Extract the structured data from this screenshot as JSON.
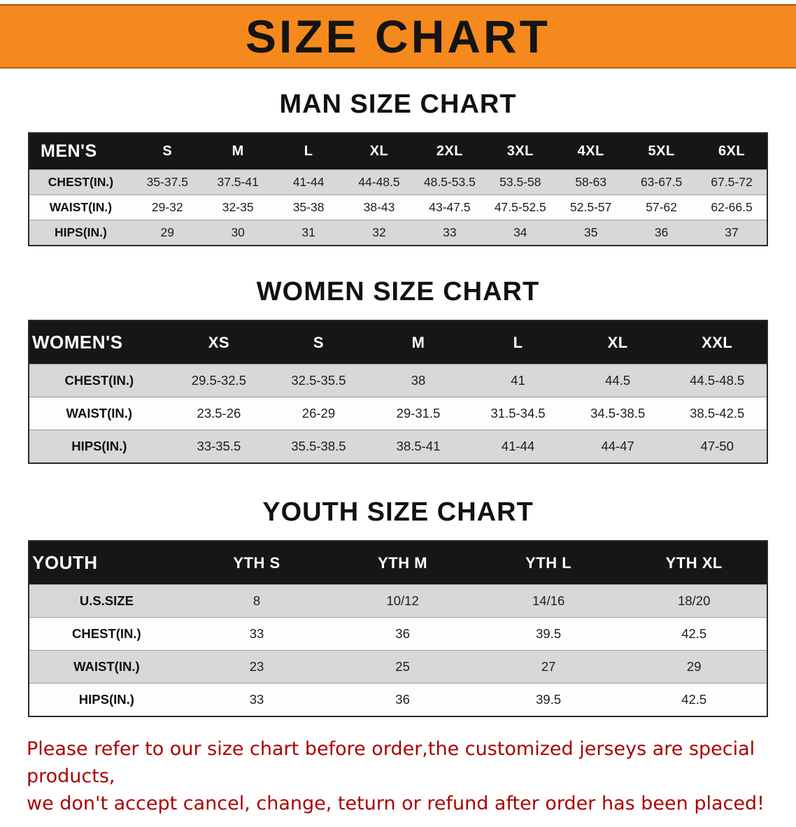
{
  "banner": {
    "title": "SIZE CHART",
    "bg_color": "#F6891E",
    "text_color": "#141414"
  },
  "sections": [
    {
      "heading": "MAN SIZE CHART",
      "table": {
        "header": [
          "MEN'S",
          "S",
          "M",
          "L",
          "XL",
          "2XL",
          "3XL",
          "4XL",
          "5XL",
          "6XL"
        ],
        "rows": [
          {
            "label": "CHEST(IN.)",
            "values": [
              "35-37.5",
              "37.5-41",
              "41-44",
              "44-48.5",
              "48.5-53.5",
              "53.5-58",
              "58-63",
              "63-67.5",
              "67.5-72"
            ]
          },
          {
            "label": "WAIST(IN.)",
            "values": [
              "29-32",
              "32-35",
              "35-38",
              "38-43",
              "43-47.5",
              "47.5-52.5",
              "52.5-57",
              "57-62",
              "62-66.5"
            ]
          },
          {
            "label": "HIPS(IN.)",
            "values": [
              "29",
              "30",
              "31",
              "32",
              "33",
              "34",
              "35",
              "36",
              "37"
            ]
          }
        ]
      }
    },
    {
      "heading": "WOMEN SIZE CHART",
      "table": {
        "header": [
          "WOMEN'S",
          "XS",
          "S",
          "M",
          "L",
          "XL",
          "XXL"
        ],
        "rows": [
          {
            "label": "CHEST(IN.)",
            "values": [
              "29.5-32.5",
              "32.5-35.5",
              "38",
              "41",
              "44.5",
              "44.5-48.5"
            ]
          },
          {
            "label": "WAIST(IN.)",
            "values": [
              "23.5-26",
              "26-29",
              "29-31.5",
              "31.5-34.5",
              "34.5-38.5",
              "38.5-42.5"
            ]
          },
          {
            "label": "HIPS(IN.)",
            "values": [
              "33-35.5",
              "35.5-38.5",
              "38.5-41",
              "41-44",
              "44-47",
              "47-50"
            ]
          }
        ]
      }
    },
    {
      "heading": "YOUTH SIZE CHART",
      "table": {
        "header": [
          "YOUTH",
          "YTH S",
          "YTH M",
          "YTH L",
          "YTH XL"
        ],
        "rows": [
          {
            "label": "U.S.SIZE",
            "values": [
              "8",
              "10/12",
              "14/16",
              "18/20"
            ]
          },
          {
            "label": "CHEST(IN.)",
            "values": [
              "33",
              "36",
              "39.5",
              "42.5"
            ]
          },
          {
            "label": "WAIST(IN.)",
            "values": [
              "23",
              "25",
              "27",
              "29"
            ]
          },
          {
            "label": "HIPS(IN.)",
            "values": [
              "33",
              "36",
              "39.5",
              "42.5"
            ]
          }
        ]
      }
    }
  ],
  "table_colors": {
    "header_bg": "#161616",
    "header_text": "#ffffff",
    "shaded_row_bg": "#d8d8d8",
    "plain_row_bg": "#fdfdfd"
  },
  "disclaimer": {
    "color": "#AB0000",
    "lines": [
      "Please refer to our size chart before order,the customized jerseys are special products,",
      "we don't accept cancel, change, teturn or refund after order has been placed!"
    ]
  }
}
